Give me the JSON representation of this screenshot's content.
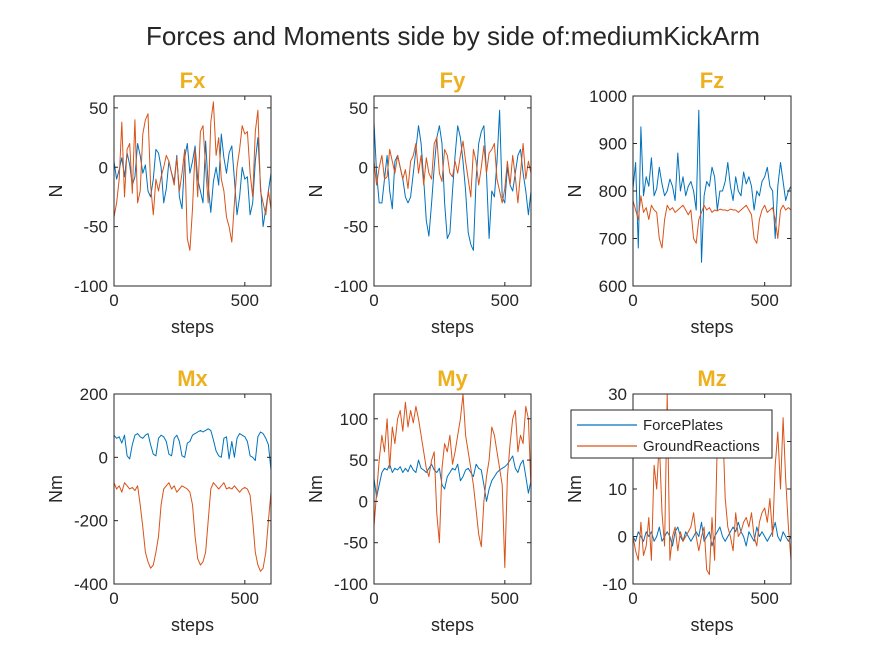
{
  "figure_title": "Forces and Moments side by side of:mediumKickArm",
  "colors": {
    "ForcePlates": "#0072BD",
    "GroundReactions": "#D95319",
    "panel_title": "#EDB120"
  },
  "legend": {
    "placement": "inside-top-left of Mz panel",
    "entries": [
      "ForcePlates",
      "GroundReactions"
    ]
  },
  "chart_data": [
    {
      "type": "line",
      "title": "Fx",
      "xlabel": "steps",
      "ylabel": "N",
      "xlim": [
        0,
        600
      ],
      "ylim": [
        -100,
        60
      ],
      "xticks": [
        0,
        500
      ],
      "yticks": [
        -100,
        -50,
        0,
        50
      ],
      "series": [
        {
          "name": "ForcePlates",
          "values": [
            5,
            -10,
            -2,
            8,
            -8,
            12,
            2,
            -15,
            -8,
            20,
            10,
            -5,
            2,
            -20,
            -25,
            -10,
            15,
            12,
            0,
            -30,
            -18,
            5,
            -5,
            -12,
            10,
            -25,
            -35,
            8,
            20,
            -5,
            5,
            18,
            -10,
            -20,
            -30,
            22,
            -15,
            -38,
            -12,
            0,
            -15,
            28,
            8,
            -5,
            12,
            18,
            -10,
            -40,
            -25,
            0,
            -10,
            -8,
            -40,
            -30,
            5,
            25,
            -15,
            -50,
            -35,
            -20,
            -5
          ]
        },
        {
          "name": "GroundReactions",
          "values": [
            -42,
            -30,
            -10,
            38,
            -25,
            15,
            20,
            -22,
            40,
            -30,
            -20,
            28,
            40,
            45,
            -15,
            -40,
            -10,
            -20,
            -8,
            0,
            10,
            5,
            -5,
            -15,
            8,
            -20,
            -5,
            15,
            -60,
            -70,
            -35,
            15,
            -25,
            30,
            35,
            0,
            -30,
            38,
            55,
            10,
            25,
            -10,
            -20,
            -42,
            -50,
            -63,
            -30,
            0,
            15,
            35,
            28,
            30,
            -5,
            -25,
            30,
            48,
            -20,
            -30,
            -40,
            -20,
            -35
          ]
        }
      ]
    },
    {
      "type": "line",
      "title": "Fy",
      "xlabel": "steps",
      "ylabel": "N",
      "xlim": [
        0,
        600
      ],
      "ylim": [
        -100,
        60
      ],
      "xticks": [
        0,
        500
      ],
      "yticks": [
        -100,
        -50,
        0,
        50
      ],
      "series": [
        {
          "name": "ForcePlates",
          "values": [
            38,
            -5,
            -30,
            -30,
            -10,
            10,
            -20,
            -35,
            5,
            10,
            0,
            -10,
            -25,
            -30,
            -25,
            -5,
            15,
            35,
            20,
            -10,
            -45,
            -58,
            -30,
            0,
            25,
            35,
            20,
            -30,
            -60,
            -55,
            -20,
            10,
            35,
            25,
            5,
            -20,
            -55,
            -65,
            -70,
            -10,
            20,
            30,
            35,
            -5,
            -60,
            -20,
            -25,
            5,
            48,
            -25,
            -30,
            0,
            -15,
            -20,
            -5,
            10,
            15,
            -5,
            -20,
            -40,
            -20
          ]
        },
        {
          "name": "GroundReactions",
          "values": [
            5,
            -15,
            0,
            10,
            -10,
            -8,
            15,
            5,
            -5,
            10,
            0,
            -10,
            -2,
            -18,
            5,
            10,
            20,
            -5,
            10,
            -15,
            8,
            -5,
            -10,
            20,
            25,
            -5,
            -12,
            15,
            10,
            -5,
            -8,
            5,
            -5,
            10,
            22,
            5,
            -10,
            -25,
            15,
            5,
            -15,
            0,
            18,
            -5,
            12,
            15,
            20,
            -10,
            -20,
            -30,
            -18,
            5,
            -15,
            10,
            -8,
            -30,
            -5,
            20,
            -10,
            5,
            -5
          ]
        }
      ]
    },
    {
      "type": "line",
      "title": "Fz",
      "xlabel": "steps",
      "ylabel": "N",
      "xlim": [
        0,
        600
      ],
      "ylim": [
        600,
        1000
      ],
      "xticks": [
        0,
        500
      ],
      "yticks": [
        600,
        700,
        800,
        900,
        1000
      ],
      "series": [
        {
          "name": "ForcePlates",
          "values": [
            805,
            860,
            680,
            935,
            790,
            830,
            810,
            870,
            790,
            805,
            850,
            815,
            790,
            800,
            825,
            810,
            780,
            880,
            800,
            830,
            790,
            810,
            820,
            800,
            760,
            970,
            650,
            790,
            820,
            810,
            850,
            830,
            760,
            800,
            800,
            820,
            860,
            810,
            780,
            830,
            800,
            790,
            840,
            815,
            830,
            810,
            760,
            800,
            790,
            820,
            830,
            850,
            810,
            800,
            700,
            810,
            860,
            820,
            780,
            800,
            810
          ]
        },
        {
          "name": "GroundReactions",
          "values": [
            780,
            760,
            740,
            790,
            755,
            765,
            740,
            770,
            760,
            755,
            700,
            680,
            740,
            770,
            760,
            765,
            755,
            760,
            765,
            770,
            760,
            750,
            760,
            700,
            690,
            740,
            755,
            770,
            760,
            765,
            755,
            760,
            758,
            762,
            760,
            760,
            758,
            762,
            760,
            760,
            755,
            760,
            765,
            770,
            760,
            750,
            700,
            690,
            740,
            760,
            770,
            755,
            760,
            765,
            740,
            700,
            760,
            770,
            760,
            765,
            760
          ]
        }
      ]
    },
    {
      "type": "line",
      "title": "Mx",
      "xlabel": "steps",
      "ylabel": "Nm",
      "xlim": [
        0,
        600
      ],
      "ylim": [
        -400,
        200
      ],
      "xticks": [
        0,
        500
      ],
      "yticks": [
        -400,
        -200,
        0,
        200
      ],
      "series": [
        {
          "name": "ForcePlates",
          "values": [
            70,
            60,
            65,
            45,
            70,
            5,
            -5,
            40,
            70,
            75,
            65,
            60,
            70,
            75,
            40,
            10,
            5,
            60,
            70,
            65,
            50,
            10,
            5,
            60,
            70,
            50,
            5,
            0,
            45,
            50,
            70,
            75,
            80,
            85,
            80,
            85,
            90,
            85,
            55,
            20,
            5,
            0,
            60,
            65,
            -5,
            50,
            0,
            60,
            75,
            70,
            65,
            50,
            5,
            0,
            -10,
            65,
            80,
            75,
            60,
            40,
            -40
          ]
        },
        {
          "name": "GroundReactions",
          "values": [
            -80,
            -100,
            -90,
            -110,
            -80,
            -90,
            -100,
            -95,
            -105,
            -90,
            -150,
            -220,
            -300,
            -330,
            -350,
            -340,
            -300,
            -250,
            -150,
            -100,
            -90,
            -80,
            -100,
            -90,
            -110,
            -100,
            -90,
            -95,
            -100,
            -110,
            -150,
            -250,
            -320,
            -340,
            -330,
            -300,
            -200,
            -100,
            -80,
            -90,
            -100,
            -90,
            -80,
            -100,
            -95,
            -100,
            -90,
            -100,
            -110,
            -100,
            -95,
            -100,
            -120,
            -200,
            -300,
            -340,
            -360,
            -350,
            -300,
            -200,
            -110
          ]
        }
      ]
    },
    {
      "type": "line",
      "title": "My",
      "xlabel": "steps",
      "ylabel": "Nm",
      "xlim": [
        0,
        600
      ],
      "ylim": [
        -100,
        130
      ],
      "xticks": [
        0,
        500
      ],
      "yticks": [
        -100,
        -50,
        0,
        50,
        100
      ],
      "series": [
        {
          "name": "ForcePlates",
          "values": [
            28,
            5,
            20,
            35,
            40,
            38,
            45,
            35,
            40,
            38,
            42,
            35,
            40,
            36,
            44,
            38,
            35,
            50,
            40,
            38,
            35,
            40,
            45,
            38,
            35,
            40,
            20,
            15,
            30,
            35,
            40,
            38,
            45,
            25,
            30,
            38,
            40,
            35,
            30,
            45,
            40,
            38,
            20,
            0,
            15,
            25,
            30,
            35,
            38,
            40,
            42,
            45,
            50,
            55,
            40,
            35,
            45,
            50,
            30,
            10,
            25
          ]
        },
        {
          "name": "GroundReactions",
          "values": [
            -30,
            10,
            50,
            80,
            60,
            100,
            40,
            90,
            70,
            100,
            110,
            85,
            120,
            90,
            110,
            95,
            115,
            100,
            80,
            60,
            40,
            30,
            50,
            60,
            -15,
            -50,
            40,
            70,
            60,
            80,
            45,
            60,
            80,
            100,
            130,
            80,
            60,
            40,
            20,
            -10,
            -40,
            -55,
            0,
            30,
            50,
            90,
            80,
            60,
            40,
            20,
            -80,
            30,
            70,
            100,
            110,
            60,
            80,
            70,
            115,
            100,
            15
          ]
        }
      ]
    },
    {
      "type": "line",
      "title": "Mz",
      "xlabel": "steps",
      "ylabel": "Nm",
      "xlim": [
        0,
        600
      ],
      "ylim": [
        -10,
        30
      ],
      "xticks": [
        0,
        500
      ],
      "yticks": [
        -10,
        0,
        10,
        20,
        30
      ],
      "series": [
        {
          "name": "ForcePlates",
          "values": [
            0,
            -1,
            1,
            0,
            -1,
            1,
            0,
            1,
            -1,
            0,
            2,
            -1,
            0,
            1,
            0,
            -2,
            1,
            2,
            0,
            -1,
            1,
            0,
            -1,
            0,
            1,
            0,
            3,
            -1,
            0,
            1,
            -2,
            0,
            1,
            2,
            0,
            -1,
            0,
            1,
            2,
            1,
            3,
            1,
            0,
            -2,
            1,
            0,
            -1,
            2,
            0,
            1,
            0,
            -1,
            0,
            1,
            3,
            0,
            -1,
            1,
            0,
            -1,
            0
          ]
        },
        {
          "name": "GroundReactions",
          "values": [
            0,
            -3,
            -5,
            3,
            -4,
            -2,
            4,
            -5,
            15,
            10,
            20,
            5,
            -2,
            30,
            -5,
            0,
            2,
            -3,
            1,
            -1,
            0,
            1,
            2,
            5,
            0,
            -3,
            0,
            2,
            -7,
            -8,
            4,
            -5,
            20,
            18,
            25,
            8,
            2,
            0,
            -3,
            5,
            0,
            1,
            3,
            4,
            2,
            5,
            0,
            -2,
            3,
            5,
            6,
            3,
            8,
            0,
            15,
            22,
            10,
            25,
            12,
            2,
            -5
          ]
        }
      ]
    }
  ]
}
